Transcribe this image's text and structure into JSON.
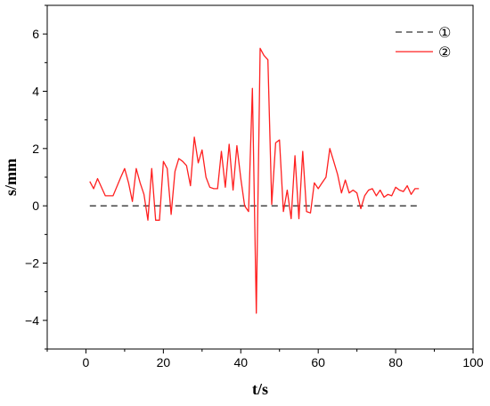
{
  "chart_data": {
    "type": "line",
    "xlabel": "t/s",
    "ylabel": "s/mm",
    "xlim": [
      -10,
      100
    ],
    "ylim": [
      -5,
      7
    ],
    "xticks": [
      "0",
      "20",
      "40",
      "60",
      "80",
      "100"
    ],
    "yticks": [
      "-4",
      "-2",
      "0",
      "2",
      "4",
      "6"
    ],
    "legend_position": "top-right",
    "grid": false,
    "series": [
      {
        "name": "①",
        "style": "dashed",
        "color": "#333333",
        "x": [
          1,
          86
        ],
        "y": [
          0,
          0
        ]
      },
      {
        "name": "②",
        "style": "solid",
        "color": "#ff2020",
        "x": [
          1,
          2,
          3,
          5,
          7,
          9,
          10,
          11,
          12,
          13,
          14,
          15,
          16,
          17,
          18,
          19,
          20,
          21,
          22,
          23,
          24,
          25,
          26,
          27,
          28,
          29,
          30,
          31,
          32,
          33,
          34,
          35,
          36,
          37,
          38,
          39,
          40,
          41,
          42,
          43,
          44,
          45,
          46,
          47,
          48,
          49,
          50,
          51,
          52,
          53,
          54,
          55,
          56,
          57,
          58,
          59,
          60,
          61,
          62,
          63,
          64,
          65,
          66,
          67,
          68,
          69,
          70,
          71,
          72,
          73,
          74,
          75,
          76,
          77,
          78,
          79,
          80,
          81,
          82,
          83,
          84,
          85,
          86
        ],
        "y": [
          0.85,
          0.6,
          0.95,
          0.35,
          0.35,
          1.0,
          1.3,
          0.8,
          0.15,
          1.3,
          0.8,
          0.4,
          -0.5,
          1.3,
          -0.5,
          -0.5,
          1.55,
          1.3,
          -0.3,
          1.2,
          1.65,
          1.55,
          1.4,
          0.7,
          2.4,
          1.5,
          1.95,
          1.0,
          0.65,
          0.6,
          0.6,
          1.9,
          0.65,
          2.15,
          0.55,
          2.1,
          0.95,
          0.0,
          -0.2,
          4.1,
          -3.75,
          5.5,
          5.25,
          5.1,
          0.05,
          2.2,
          2.3,
          -0.2,
          0.55,
          -0.45,
          1.75,
          -0.45,
          1.9,
          -0.2,
          -0.25,
          0.8,
          0.6,
          0.8,
          1.0,
          2.0,
          1.55,
          1.1,
          0.45,
          0.9,
          0.45,
          0.55,
          0.45,
          -0.1,
          0.35,
          0.55,
          0.6,
          0.35,
          0.55,
          0.3,
          0.4,
          0.35,
          0.65,
          0.55,
          0.5,
          0.7,
          0.4,
          0.6,
          0.6
        ]
      }
    ]
  }
}
